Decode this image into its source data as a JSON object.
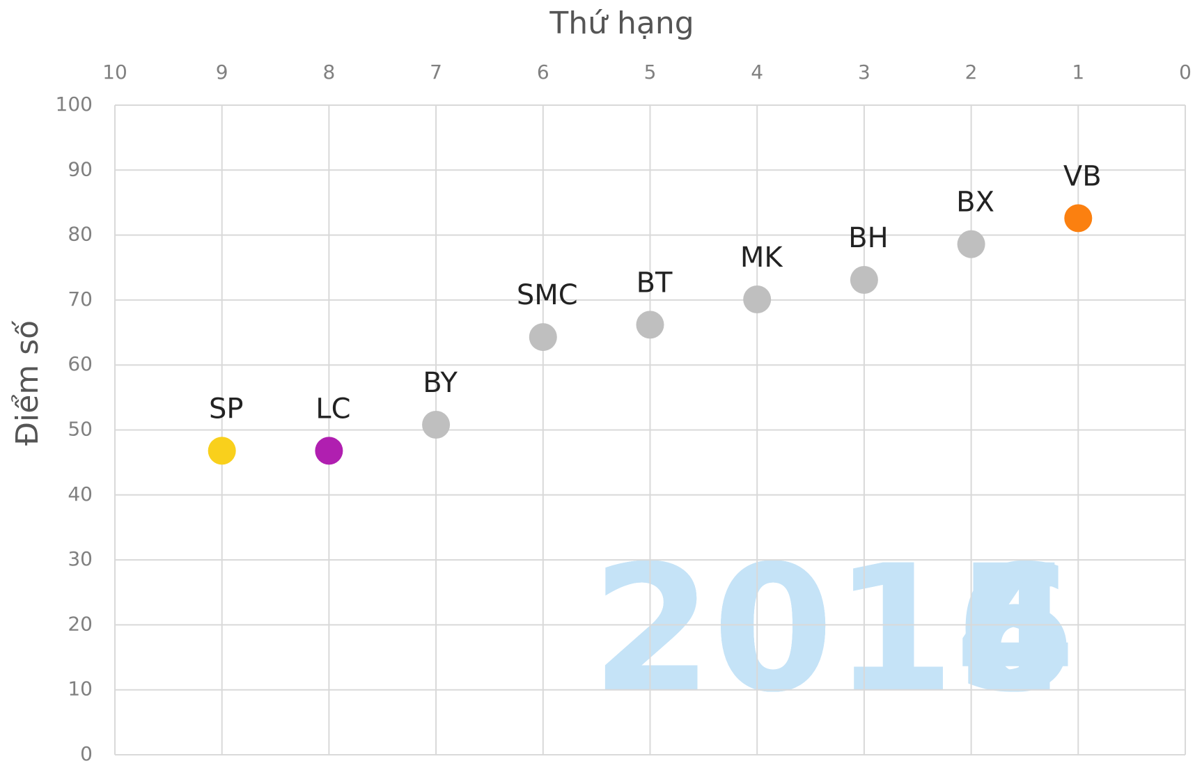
{
  "chart_data": {
    "type": "scatter",
    "x_label": "Thứ hạng",
    "y_label": "Điểm số",
    "labels": [
      "SP",
      "LC",
      "BY",
      "SMC",
      "BT",
      "MK",
      "BH",
      "BX",
      "VB"
    ],
    "x": [
      9,
      8,
      7,
      6,
      5,
      4,
      3,
      2,
      1
    ],
    "values": [
      46.8,
      46.8,
      50.8,
      64.3,
      66.2,
      70.1,
      73.1,
      78.6,
      82.6
    ],
    "colors": [
      "#f9d01c",
      "#b01fb0",
      "#bfbfbf",
      "#bfbfbf",
      "#bfbfbf",
      "#bfbfbf",
      "#bfbfbf",
      "#bfbfbf",
      "#fb8010"
    ],
    "xlim": [
      10,
      0
    ],
    "xticks": [
      10,
      9,
      8,
      7,
      6,
      5,
      4,
      3,
      2,
      1,
      0
    ],
    "ylim": [
      0,
      100
    ],
    "yticks": [
      0,
      10,
      20,
      30,
      40,
      50,
      60,
      70,
      80,
      90,
      100
    ],
    "grid": true,
    "annotations": [
      "2014",
      "2015",
      "2016"
    ]
  }
}
